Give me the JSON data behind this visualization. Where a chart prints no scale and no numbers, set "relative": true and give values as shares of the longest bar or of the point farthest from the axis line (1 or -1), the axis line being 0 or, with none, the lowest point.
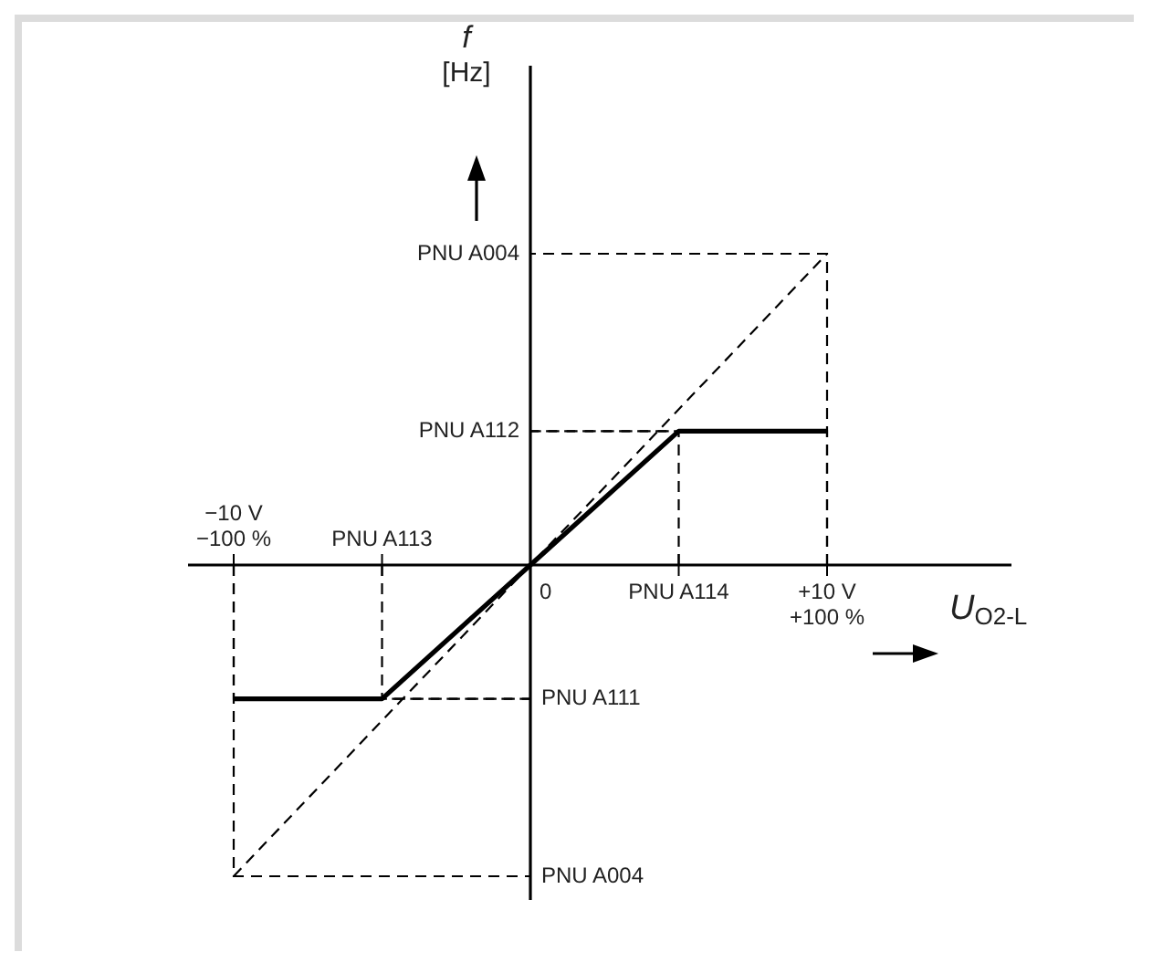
{
  "chart_data": {
    "type": "line",
    "relative": true,
    "xlabel": "U$_{O2-L}$",
    "categories": [
      "−10 V\n−100 %",
      "PNU A113",
      "0",
      "PNU A114",
      "+10 V\n+100 %"
    ],
    "marker": "none",
    "series": [
      {
        "color": "#000000",
        "line_style": "solid",
        "values": [
          -0.43,
          -0.43,
          0,
          0.43,
          0.43
        ]
      },
      {
        "color": "#000000",
        "line_style": "dashed",
        "values": [
          -1,
          null,
          0,
          null,
          1
        ]
      }
    ],
    "annotations": [
      "f\n[Hz]",
      "PNU A004",
      "PNU A112",
      "PNU A111",
      "PNU A004"
    ]
  }
}
